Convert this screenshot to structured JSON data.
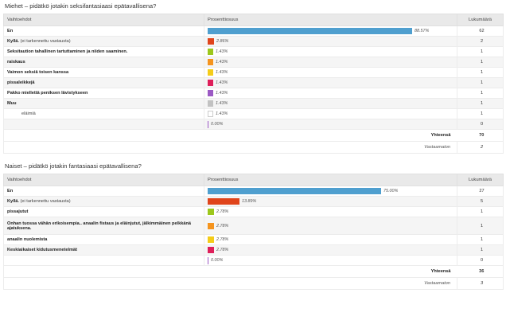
{
  "tables": [
    {
      "title": "Miehet – pidätkö jotakin seksifantasiaasi epätavallisena?",
      "headers": {
        "option": "Vaihtoehdot",
        "percent": "Prosenttiosuus",
        "count": "Lukumäärä"
      },
      "rows": [
        {
          "label": "En",
          "sub": "",
          "percent": 88.57,
          "percent_label": "88.57%",
          "count": "62",
          "color": "#4f9fcf"
        },
        {
          "label": "Kyllä.",
          "sub": "(ei tarkennettu vastausta)",
          "percent": 2.86,
          "percent_label": "2.86%",
          "count": "2",
          "color": "#e0441b"
        },
        {
          "label": "Seksitaution tahallinen tartuttaminen ja niiden saaminen.",
          "sub": "",
          "percent": 1.43,
          "percent_label": "1.43%",
          "count": "1",
          "color": "#9cc71c"
        },
        {
          "label": "raiskaus",
          "sub": "",
          "percent": 1.43,
          "percent_label": "1.43%",
          "count": "1",
          "color": "#f5941e"
        },
        {
          "label": "Vaimon seksiä toisen kanssa",
          "sub": "",
          "percent": 1.43,
          "percent_label": "1.43%",
          "count": "1",
          "color": "#f4cc19"
        },
        {
          "label": "pissaleikkejä",
          "sub": "",
          "percent": 1.43,
          "percent_label": "1.43%",
          "count": "1",
          "color": "#de1f5a"
        },
        {
          "label": "Pakko miellettä peniksen lävistykseen",
          "sub": "",
          "percent": 1.43,
          "percent_label": "1.43%",
          "count": "1",
          "color": "#9b59c4"
        },
        {
          "label": "Muu",
          "sub": "",
          "percent": 1.43,
          "percent_label": "1.43%",
          "count": "1",
          "color": "#c2c2c2"
        },
        {
          "label": "eläimiä",
          "sub": "",
          "percent": 1.43,
          "percent_label": "1.43%",
          "count": "1",
          "color": "#ffffff",
          "indent": true,
          "outline": true
        },
        {
          "label": "",
          "sub": "",
          "percent": 0,
          "percent_label": "0.00%",
          "count": "0",
          "color": "#9b59c4",
          "thin": true
        }
      ],
      "total_label": "Yhteensä",
      "total": "70",
      "unanswered_label": "Vastaamaton",
      "unanswered": "2"
    },
    {
      "title": "Naiset – pidätkö jotakin fantasiaasi epätavallisena?",
      "headers": {
        "option": "Vaihtoehdot",
        "percent": "Prosenttiosuus",
        "count": "Lukumäärä"
      },
      "rows": [
        {
          "label": "En",
          "sub": "",
          "percent": 75.0,
          "percent_label": "75.00%",
          "count": "27",
          "color": "#4f9fcf"
        },
        {
          "label": "Kyllä.",
          "sub": "(ei tarkennettu vastausta)",
          "percent": 13.89,
          "percent_label": "13.89%",
          "count": "5",
          "color": "#e0441b"
        },
        {
          "label": "pissajutut",
          "sub": "",
          "percent": 2.78,
          "percent_label": "2.78%",
          "count": "1",
          "color": "#9cc71c"
        },
        {
          "label": "Onhan tuossa vähän erikoisempia.. anaalin fistaus ja eläinjutut, jälkimmäinen pelkkänä ajatuksena.",
          "sub": "",
          "percent": 2.78,
          "percent_label": "2.78%",
          "count": "1",
          "color": "#f5941e",
          "tall": true
        },
        {
          "label": "anaalin nuolemista",
          "sub": "",
          "percent": 2.78,
          "percent_label": "2.78%",
          "count": "1",
          "color": "#f4cc19"
        },
        {
          "label": "Keskiaikaiset kidutusmenetelmät",
          "sub": "",
          "percent": 2.78,
          "percent_label": "2.78%",
          "count": "1",
          "color": "#de1f5a"
        },
        {
          "label": "",
          "sub": "",
          "percent": 0,
          "percent_label": "0.00%",
          "count": "0",
          "color": "#9b59c4",
          "thin": true
        }
      ],
      "total_label": "Yhteensä",
      "total": "36",
      "unanswered_label": "Vastaamaton",
      "unanswered": "3"
    }
  ]
}
